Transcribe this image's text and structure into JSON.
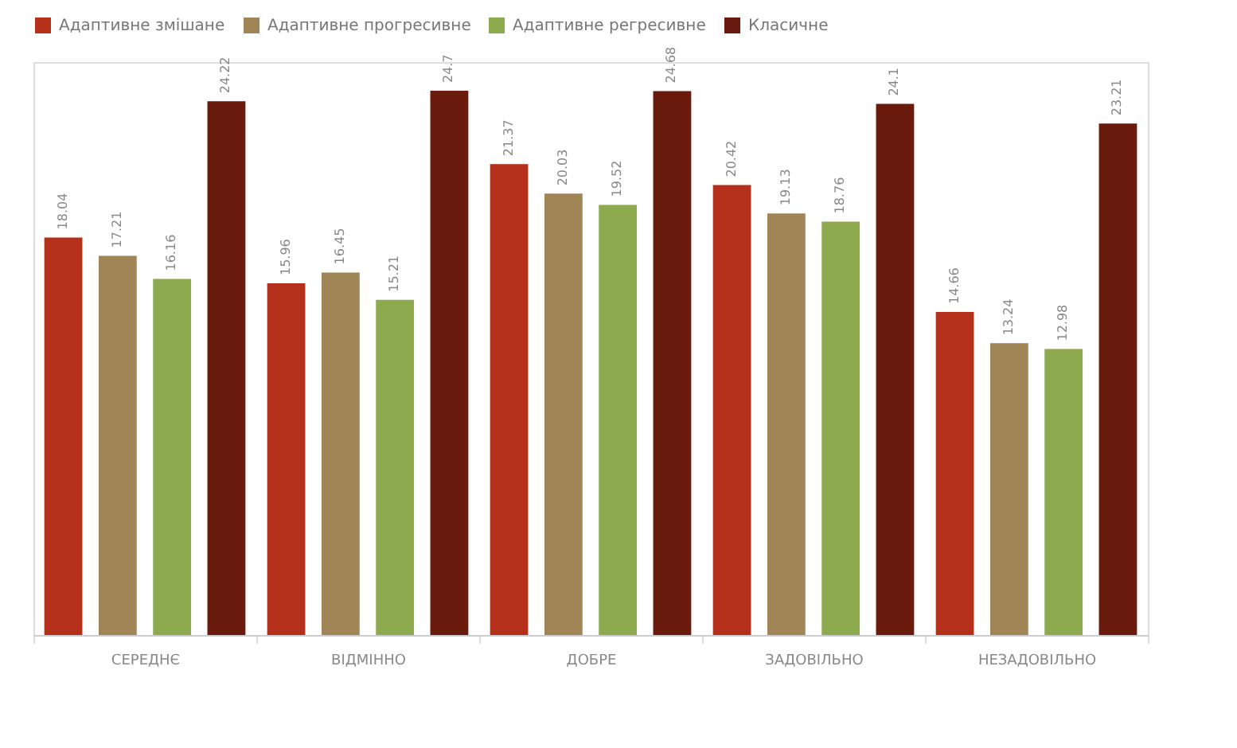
{
  "chart_data": {
    "type": "bar",
    "categories": [
      "СЕРЕДНЄ",
      "ВІДМІННО",
      "ДОБРЕ",
      "ЗАДОВІЛЬНО",
      "НЕЗАДОВІЛЬНО"
    ],
    "series": [
      {
        "name": "Адаптивне змішане",
        "color": "#b5301a",
        "values": [
          18.04,
          15.96,
          21.37,
          20.42,
          14.66
        ]
      },
      {
        "name": "Адаптивне прогресивне",
        "color": "#a08656",
        "values": [
          17.21,
          16.45,
          20.03,
          19.13,
          13.24
        ]
      },
      {
        "name": "Адаптивне регресивне",
        "color": "#8eaa4e",
        "values": [
          16.16,
          15.21,
          19.52,
          18.76,
          12.98
        ]
      },
      {
        "name": "Класичне",
        "color": "#6b1a0e",
        "values": [
          24.22,
          24.7,
          24.68,
          24.1,
          23.21
        ]
      }
    ],
    "data_labels": true,
    "legend": "top",
    "grid": false
  }
}
